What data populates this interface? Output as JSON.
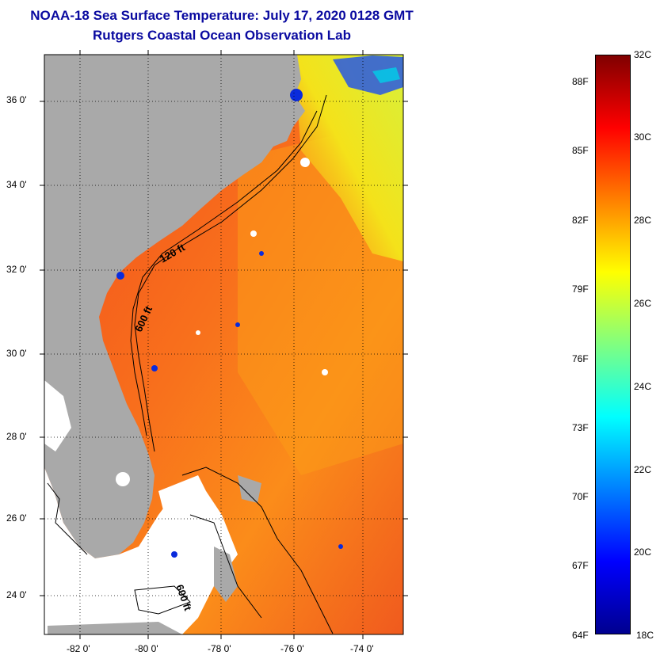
{
  "title": {
    "line1": "NOAA-18 Sea Surface Temperature:  July 17, 2020 0128 GMT",
    "line2": "Rutgers Coastal Ocean Observation Lab"
  },
  "map": {
    "lat_labels": [
      "36 0'",
      "34 0'",
      "32 0'",
      "30 0'",
      "28 0'",
      "26 0'",
      "24 0'"
    ],
    "lon_labels": [
      "-82 0'",
      "-80 0'",
      "-78 0'",
      "-76 0'",
      "-74 0'"
    ],
    "contour_labels": [
      "120 ft",
      "600 ft",
      "600 ft"
    ],
    "colors": {
      "land": "#a9a9a9",
      "cloud": "#ffffff",
      "warm_water": "#f24a1e",
      "orange_water": "#fb8c1a",
      "cool_water": "#f4e21a"
    }
  },
  "colorbar": {
    "celsius_labels": [
      "32C",
      "30C",
      "28C",
      "26C",
      "24C",
      "22C",
      "20C",
      "18C"
    ],
    "fahrenheit_labels": [
      "88F",
      "85F",
      "82F",
      "79F",
      "76F",
      "73F",
      "70F",
      "67F",
      "64F"
    ],
    "range_c": [
      18,
      32
    ],
    "colors": [
      "#00008f",
      "#0000ff",
      "#0080ff",
      "#00ffff",
      "#80ff80",
      "#ffff00",
      "#ff8000",
      "#ff0000",
      "#800000"
    ]
  }
}
